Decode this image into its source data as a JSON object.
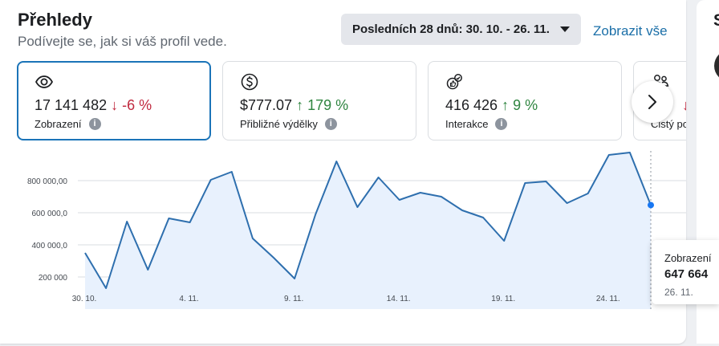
{
  "header": {
    "title": "Přehledy",
    "subtitle": "Podívejte se, jak si váš profil vede.",
    "date_range": "Posledních 28 dnů: 30. 10. - 26. 11.",
    "see_all": "Zobrazit vše"
  },
  "cards": [
    {
      "icon": "eye-icon",
      "value": "17 141 482",
      "change": "-6 %",
      "direction": "down",
      "label": "Zobrazení"
    },
    {
      "icon": "dollar-icon",
      "value": "$777.07",
      "change": "179 %",
      "direction": "up",
      "label": "Přibližné výdělky"
    },
    {
      "icon": "interactions-icon",
      "value": "416 426",
      "change": "9 %",
      "direction": "up",
      "label": "Interakce"
    },
    {
      "icon": "followers-icon",
      "value": "",
      "change": "",
      "direction": "down",
      "label": "Čistý po"
    }
  ],
  "info_glyph": "i",
  "right_panel": {
    "letter": "S"
  },
  "tooltip": {
    "label": "Zobrazení",
    "value": "647 664",
    "date": "26. 11."
  },
  "colors": {
    "accent": "#1b74b8",
    "line": "#2e6fae",
    "fill": "#e8f1fd",
    "down": "#c0283e",
    "up": "#2f8540"
  },
  "chart_data": {
    "type": "area",
    "series": [
      {
        "name": "Zobrazení",
        "values": [
          350000,
          130000,
          545000,
          245000,
          565000,
          540000,
          805000,
          855000,
          440000,
          320000,
          190000,
          590000,
          920000,
          635000,
          820000,
          680000,
          725000,
          700000,
          615000,
          570000,
          425000,
          785000,
          795000,
          660000,
          720000,
          960000,
          975000,
          647664
        ]
      }
    ],
    "x": [
      "30. 10.",
      "31. 10.",
      "1. 11.",
      "2. 11.",
      "3. 11.",
      "4. 11.",
      "5. 11.",
      "6. 11.",
      "7. 11.",
      "8. 11.",
      "9. 11.",
      "10. 11.",
      "11. 11.",
      "12. 11.",
      "13. 11.",
      "14. 11.",
      "15. 11.",
      "16. 11.",
      "17. 11.",
      "18. 11.",
      "19. 11.",
      "20. 11.",
      "21. 11.",
      "22. 11.",
      "23. 11.",
      "24. 11.",
      "25. 11.",
      "26. 11."
    ],
    "x_tick_labels": [
      "30. 10.",
      "4. 11.",
      "9. 11.",
      "14. 11.",
      "19. 11.",
      "24. 11."
    ],
    "y_tick_values": [
      200000,
      400000,
      600000,
      800000
    ],
    "y_tick_labels": [
      "200 000",
      "400 000,0",
      "600 000,0",
      "800 000,00"
    ],
    "ylim": [
      0,
      1000000
    ],
    "grid": true,
    "highlight_index": 27
  }
}
